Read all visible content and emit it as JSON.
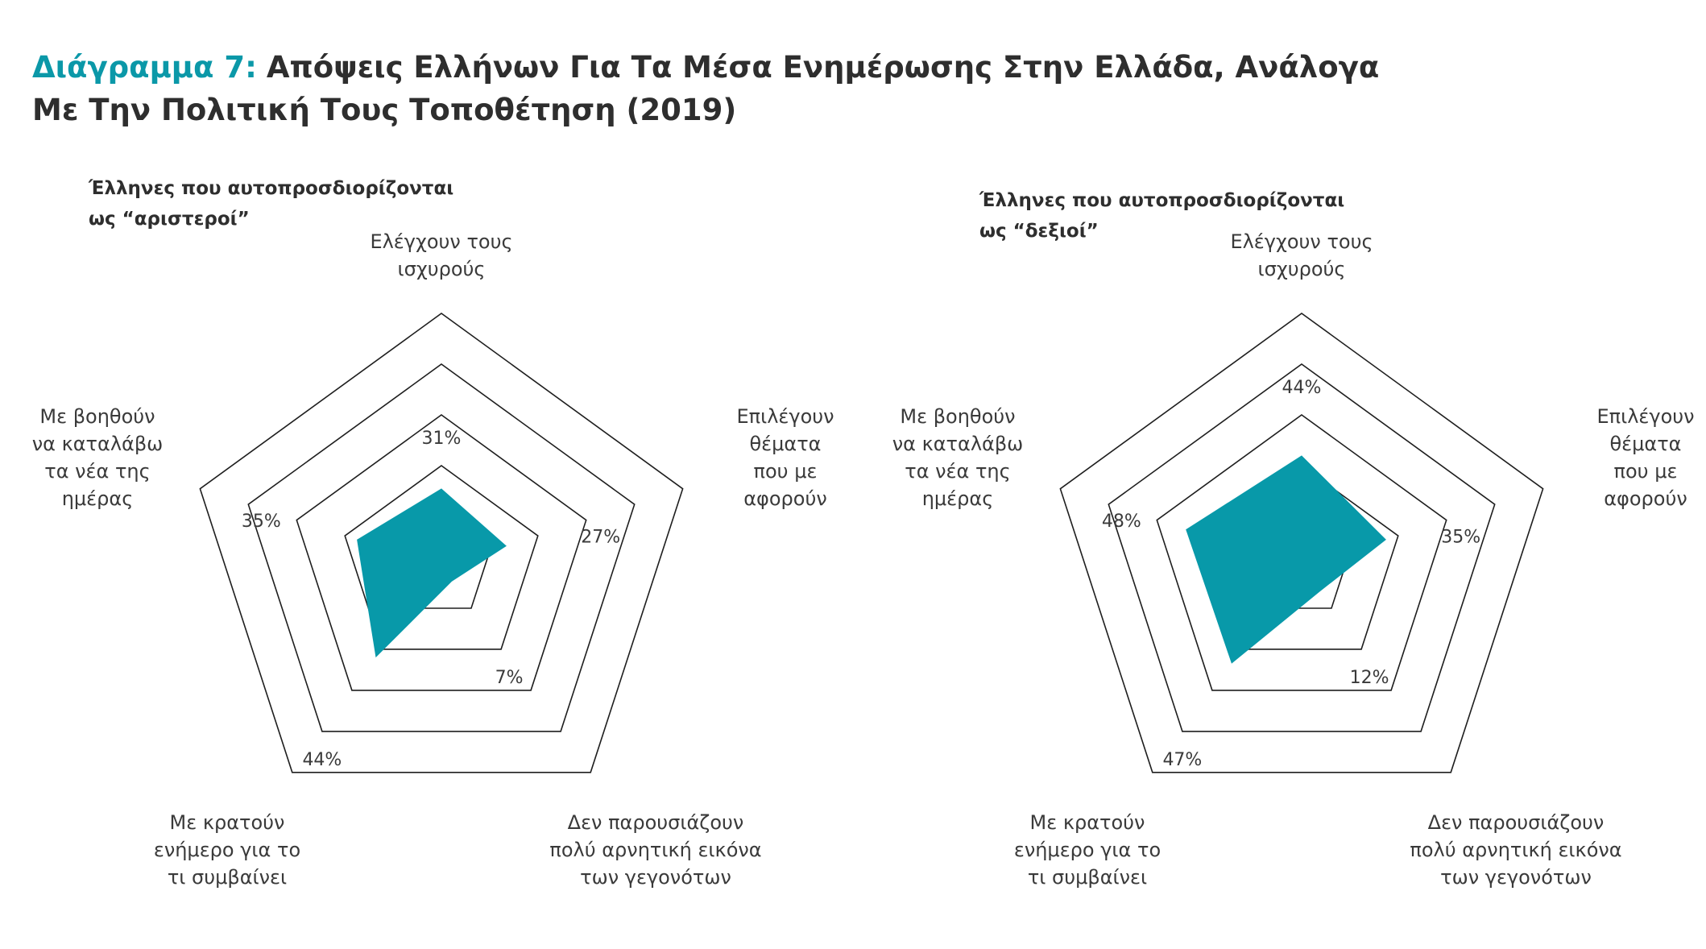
{
  "title": {
    "prefix": "Διάγραμμα 7:",
    "line1": "Απόψεις Ελλήνων Για Τα Μέσα Ενημέρωσης Στην Ελλάδα, Ανάλογα",
    "line2": "Με Την Πολιτική Τους Τοποθέτηση (2019)"
  },
  "colors": {
    "accent": "#0b98a8",
    "fill": "#0899a9",
    "grid": "#1e1e1e",
    "text": "#3a3a3a"
  },
  "chart_data": [
    {
      "type": "radar",
      "subtitle": [
        "Έλληνες που αυτοπροσδιορίζονται",
        "ως “αριστεροί”"
      ],
      "axes": [
        {
          "label": [
            "Ελέγχουν τους",
            "ισχυρούς"
          ]
        },
        {
          "label": [
            "Επιλέγουν",
            "θέματα",
            "που με",
            "αφορούν"
          ]
        },
        {
          "label": [
            "Δεν παρουσιάζουν",
            "πολύ αρνητική εικόνα",
            "των γεγονότων"
          ]
        },
        {
          "label": [
            "Με κρατούν",
            "ενήμερο για το",
            "τι συμβαίνει"
          ]
        },
        {
          "label": [
            "Με βοηθούν",
            "να καταλάβω",
            "τα νέα της",
            "ημέρας"
          ]
        }
      ],
      "values": [
        31,
        27,
        7,
        44,
        35
      ],
      "value_labels": [
        "31%",
        "27%",
        "7%",
        "44%",
        "35%"
      ],
      "rings": 5
    },
    {
      "type": "radar",
      "subtitle": [
        "Έλληνες που αυτοπροσδιορίζονται",
        "ως “δεξιοί”"
      ],
      "axes": [
        {
          "label": [
            "Ελέγχουν τους",
            "ισχυρούς"
          ]
        },
        {
          "label": [
            "Επιλέγουν",
            "θέματα",
            "που με",
            "αφορούν"
          ]
        },
        {
          "label": [
            "Δεν παρουσιάζουν",
            "πολύ αρνητική εικόνα",
            "των γεγονότων"
          ]
        },
        {
          "label": [
            "Με κρατούν",
            "ενήμερο για το",
            "τι συμβαίνει"
          ]
        },
        {
          "label": [
            "Με βοηθούν",
            "να καταλάβω",
            "τα νέα της",
            "ημέρας"
          ]
        }
      ],
      "values": [
        44,
        35,
        12,
        47,
        48
      ],
      "value_labels": [
        "44%",
        "35%",
        "12%",
        "47%",
        "48%"
      ],
      "rings": 5
    }
  ]
}
